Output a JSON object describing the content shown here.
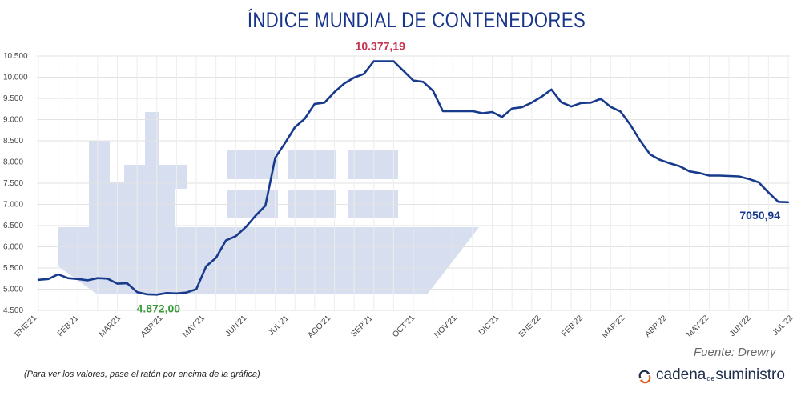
{
  "chart_data": {
    "type": "line",
    "title": "ÍNDICE MUNDIAL DE CONTENEDORES",
    "ylim": [
      4500,
      10500
    ],
    "yticks": [
      "4.500",
      "5.000",
      "5.500",
      "6.000",
      "6.500",
      "7.000",
      "7.500",
      "8.000",
      "8.500",
      "9.000",
      "9.500",
      "10.000",
      "10.500"
    ],
    "ytick_values": [
      4500,
      5000,
      5500,
      6000,
      6500,
      7000,
      7500,
      8000,
      8500,
      9000,
      9500,
      10000,
      10500
    ],
    "grid": true,
    "x_labels": [
      "ENE'21",
      "FEB'21",
      "MAR21",
      "ABR'21",
      "MAY'21",
      "JUN'21",
      "JUL'21",
      "AGO'21",
      "SEP'21",
      "OCT'21",
      "NOV'21",
      "DIC'21",
      "ENE'22",
      "FEB'22",
      "MAR'22",
      "ABR'22",
      "MAY'22",
      "JUN'22",
      "JUL'22"
    ],
    "series": [
      {
        "name": "",
        "color": "#173a8c",
        "values": [
          5220,
          5240,
          5350,
          5260,
          5240,
          5210,
          5260,
          5250,
          5130,
          5140,
          4930,
          4880,
          4872,
          4910,
          4900,
          4920,
          5000,
          5540,
          5740,
          6150,
          6250,
          6460,
          6730,
          6970,
          8100,
          8450,
          8820,
          9020,
          9370,
          9400,
          9650,
          9850,
          9990,
          10080,
          10377.19,
          10377.19,
          10377.19,
          10150,
          9920,
          9890,
          9680,
          9200,
          9200,
          9200,
          9200,
          9150,
          9180,
          9060,
          9260,
          9290,
          9400,
          9540,
          9710,
          9410,
          9310,
          9390,
          9400,
          9490,
          9300,
          9190,
          8880,
          8500,
          8180,
          8050,
          7970,
          7900,
          7780,
          7740,
          7680,
          7680,
          7670,
          7660,
          7600,
          7520,
          7280,
          7060,
          7050.94
        ]
      }
    ],
    "annotations": [
      {
        "text": "10.377,19",
        "color": "#c8324f"
      },
      {
        "text": "4.872,00",
        "color": "#3c9a3c"
      },
      {
        "text": "7050,94",
        "color": "#173a8c"
      }
    ],
    "background_icon": "cargo-ship-icon"
  },
  "source": "Fuente: Drewry",
  "note": "(Para ver los valores, pase el ratón por encima de la gráfica)",
  "brand": {
    "part1": "cadena",
    "part2": "de",
    "part3": "suministro",
    "icon": "cycle-arrows-icon"
  }
}
